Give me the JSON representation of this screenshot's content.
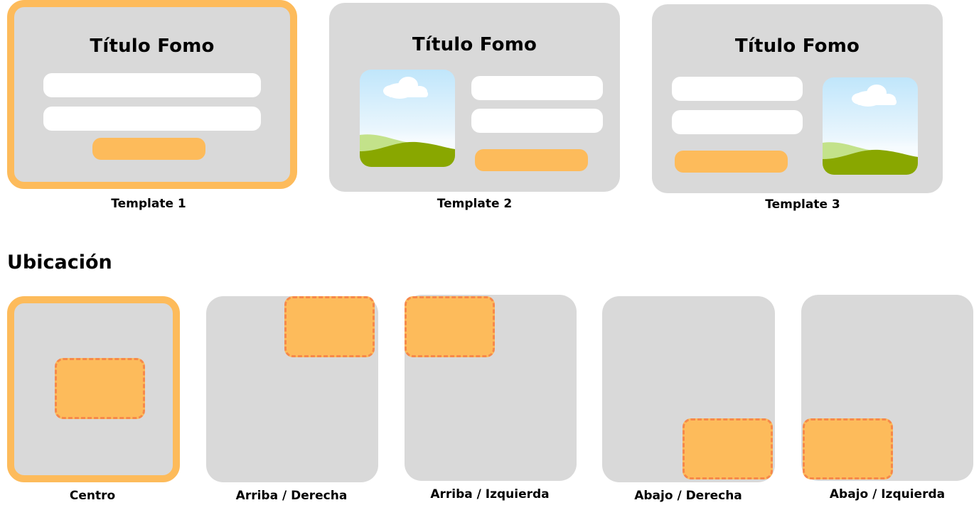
{
  "templates": [
    {
      "title": "Título Fomo",
      "caption": "Template 1",
      "selected": true
    },
    {
      "title": "Título Fomo",
      "caption": "Template 2",
      "selected": false
    },
    {
      "title": "Título Fomo",
      "caption": "Template 3",
      "selected": false
    }
  ],
  "location": {
    "heading": "Ubicación",
    "options": [
      {
        "label": "Centro",
        "selected": true
      },
      {
        "label": "Arriba / Derecha",
        "selected": false
      },
      {
        "label": "Arriba / Izquierda",
        "selected": false
      },
      {
        "label": "Abajo / Derecha",
        "selected": false
      },
      {
        "label": "Abajo / Izquierda",
        "selected": false
      }
    ]
  },
  "colors": {
    "accent": "#fdbb5b",
    "marker_border": "#f6894a",
    "card_bg": "#d9d9d9"
  },
  "icons": {
    "image_placeholder": "landscape-image-icon"
  }
}
